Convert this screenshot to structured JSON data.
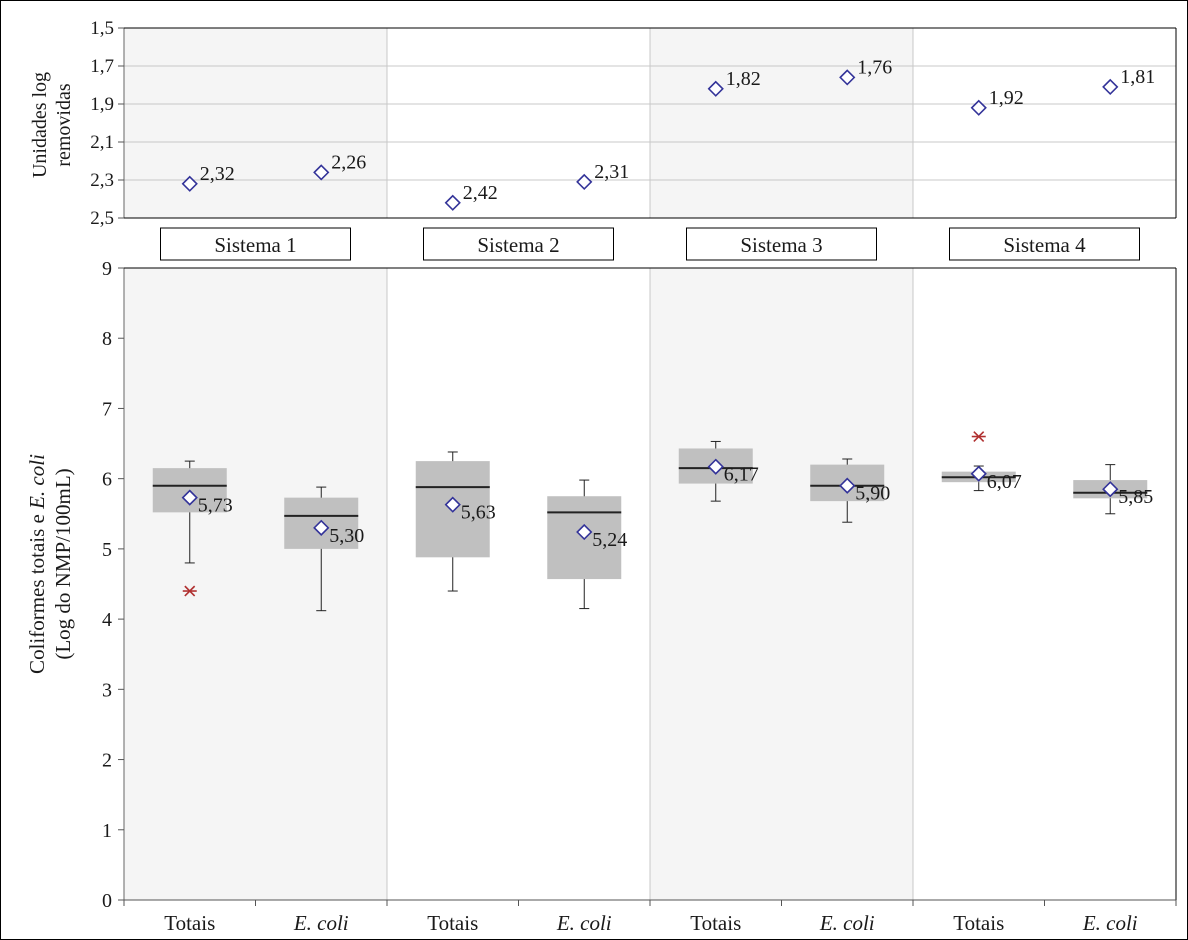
{
  "chart_data": {
    "type": "box",
    "colors": {
      "panel_shade": "#f5f5f5",
      "box_fill": "#c0c0c0",
      "mean_marker": "#333399",
      "outlier": "#b03030",
      "grid": "#c8c8c8",
      "text": "#1a1a1a"
    },
    "systems": [
      {
        "label": "Sistema 1",
        "shaded": true
      },
      {
        "label": "Sistema 2",
        "shaded": false
      },
      {
        "label": "Sistema 3",
        "shaded": true
      },
      {
        "label": "Sistema 4",
        "shaded": false
      }
    ],
    "categories": [
      "Totais",
      "E. coli",
      "Totais",
      "E. coli",
      "Totais",
      "E. coli",
      "Totais",
      "E. coli"
    ],
    "category_italic": [
      false,
      true,
      false,
      true,
      false,
      true,
      false,
      true
    ],
    "top_panel": {
      "ylabel": [
        "Unidades log",
        "removidas"
      ],
      "ylim": [
        1.5,
        2.5
      ],
      "inverted": true,
      "ticks": [
        "1,5",
        "1,7",
        "1,9",
        "2,1",
        "2,3",
        "2,5"
      ],
      "values": [
        2.32,
        2.26,
        2.42,
        2.31,
        1.82,
        1.76,
        1.92,
        1.81
      ],
      "labels": [
        "2,32",
        "2,26",
        "2,42",
        "2,31",
        "1,82",
        "1,76",
        "1,92",
        "1,81"
      ]
    },
    "bottom_panel": {
      "ylabel": [
        "Coliformes totais e",
        "E. coli",
        "(Log do NMP/100mL)"
      ],
      "ylim": [
        0,
        9
      ],
      "ticks": [
        "0",
        "1",
        "2",
        "3",
        "4",
        "5",
        "6",
        "7",
        "8",
        "9"
      ],
      "boxes": [
        {
          "whisker_low": 4.8,
          "q1": 5.52,
          "median": 5.9,
          "q3": 6.15,
          "whisker_high": 6.25,
          "mean": 5.73,
          "mean_label": "5,73",
          "outliers": [
            4.4
          ]
        },
        {
          "whisker_low": 4.12,
          "q1": 5.0,
          "median": 5.47,
          "q3": 5.73,
          "whisker_high": 5.88,
          "mean": 5.3,
          "mean_label": "5,30",
          "outliers": []
        },
        {
          "whisker_low": 4.4,
          "q1": 4.88,
          "median": 5.88,
          "q3": 6.25,
          "whisker_high": 6.38,
          "mean": 5.63,
          "mean_label": "5,63",
          "outliers": []
        },
        {
          "whisker_low": 4.15,
          "q1": 4.57,
          "median": 5.52,
          "q3": 5.75,
          "whisker_high": 5.98,
          "mean": 5.24,
          "mean_label": "5,24",
          "outliers": []
        },
        {
          "whisker_low": 5.68,
          "q1": 5.93,
          "median": 6.15,
          "q3": 6.43,
          "whisker_high": 6.53,
          "mean": 6.17,
          "mean_label": "6,17",
          "outliers": []
        },
        {
          "whisker_low": 5.38,
          "q1": 5.68,
          "median": 5.9,
          "q3": 6.2,
          "whisker_high": 6.28,
          "mean": 5.9,
          "mean_label": "5,90",
          "outliers": []
        },
        {
          "whisker_low": 5.83,
          "q1": 5.95,
          "median": 6.02,
          "q3": 6.1,
          "whisker_high": 6.18,
          "mean": 6.07,
          "mean_label": "6,07",
          "outliers": [
            6.6
          ]
        },
        {
          "whisker_low": 5.5,
          "q1": 5.72,
          "median": 5.8,
          "q3": 5.98,
          "whisker_high": 6.2,
          "mean": 5.85,
          "mean_label": "5,85",
          "outliers": []
        }
      ]
    }
  }
}
